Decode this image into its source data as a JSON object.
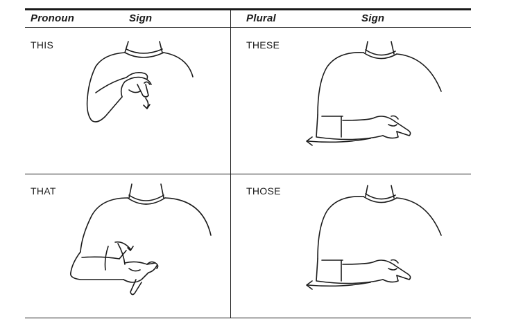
{
  "table": {
    "headers": {
      "left_word": "Pronoun",
      "left_sign": "Sign",
      "right_word": "Plural",
      "right_sign": "Sign"
    },
    "rows": [
      {
        "left": {
          "word": "THIS",
          "illustration": "hand-pointing-down-icon"
        },
        "right": {
          "word": "THESE",
          "illustration": "hand-sweeping-point-icon"
        }
      },
      {
        "left": {
          "word": "THAT",
          "illustration": "y-hand-on-palm-icon"
        },
        "right": {
          "word": "THOSE",
          "illustration": "hand-sweeping-point-icon"
        }
      }
    ]
  }
}
